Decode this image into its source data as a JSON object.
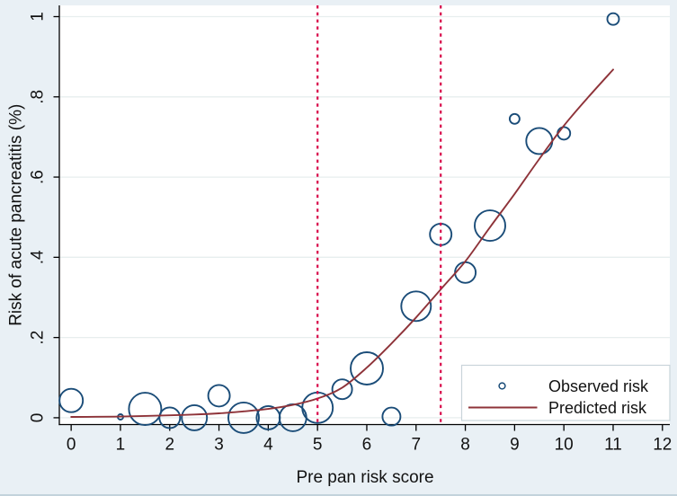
{
  "figure": {
    "background_color": "#e9f0f5",
    "plot_background_color": "#ffffff",
    "grid_color": "#e7eeee",
    "axis_color": "#000000",
    "text_color": "#121212",
    "legend_border_color": "#c9d4da",
    "bottom_edge_color": "#c3d3dc"
  },
  "chart_data": {
    "type": "scatter",
    "subtype": "bubble-scatter-with-fitted-line",
    "title": "",
    "xlabel": "Pre pan risk score",
    "ylabel": "Risk of acute pancreatitis (%)",
    "x_tick_values": [
      0,
      1,
      2,
      3,
      4,
      5,
      6,
      7,
      8,
      9,
      10,
      11,
      12
    ],
    "x_tick_labels": [
      "0",
      "1",
      "2",
      "3",
      "4",
      "5",
      "6",
      "7",
      "8",
      "9",
      "10",
      "11",
      "12"
    ],
    "y_tick_values": [
      0,
      0.2,
      0.4,
      0.6,
      0.8,
      1
    ],
    "y_tick_labels": [
      "0",
      ".2",
      ".4",
      ".6",
      ".8",
      "1"
    ],
    "xlim": [
      -0.24,
      12.15
    ],
    "ylim": [
      -0.017,
      1.028
    ],
    "grid": "horizontal-only",
    "y_tick_label_angle": 90,
    "reference_lines": {
      "x_values": [
        5,
        7.5
      ],
      "style": "dotted",
      "color": "#d8094a"
    },
    "series": [
      {
        "name": "Observed risk",
        "type": "bubble",
        "marker": "hollow-circle",
        "color": "#1a4c78",
        "points": [
          {
            "x": 0,
            "y": 0.043,
            "r": 13
          },
          {
            "x": 1,
            "y": 0.002,
            "r": 3
          },
          {
            "x": 1.5,
            "y": 0.022,
            "r": 18
          },
          {
            "x": 2,
            "y": 0.0,
            "r": 11.5
          },
          {
            "x": 2.5,
            "y": 0.0,
            "r": 14
          },
          {
            "x": 3,
            "y": 0.055,
            "r": 12
          },
          {
            "x": 3.5,
            "y": 0.0,
            "r": 17
          },
          {
            "x": 4,
            "y": 0.0,
            "r": 13
          },
          {
            "x": 4.5,
            "y": 0.0,
            "r": 15
          },
          {
            "x": 5,
            "y": 0.025,
            "r": 17
          },
          {
            "x": 5.5,
            "y": 0.071,
            "r": 11
          },
          {
            "x": 6,
            "y": 0.123,
            "r": 18
          },
          {
            "x": 6.5,
            "y": 0.003,
            "r": 10
          },
          {
            "x": 7,
            "y": 0.278,
            "r": 16.5
          },
          {
            "x": 7.5,
            "y": 0.457,
            "r": 12
          },
          {
            "x": 8,
            "y": 0.362,
            "r": 11.5
          },
          {
            "x": 8.5,
            "y": 0.479,
            "r": 17
          },
          {
            "x": 9,
            "y": 0.745,
            "r": 5.5
          },
          {
            "x": 9.5,
            "y": 0.69,
            "r": 14.5
          },
          {
            "x": 10,
            "y": 0.709,
            "r": 7
          },
          {
            "x": 11,
            "y": 0.994,
            "r": 6.5
          }
        ]
      },
      {
        "name": "Predicted risk",
        "type": "line",
        "color": "#8e3339",
        "points": [
          [
            0,
            0.002
          ],
          [
            0.5,
            0.0025
          ],
          [
            1,
            0.003
          ],
          [
            1.5,
            0.0045
          ],
          [
            2,
            0.006
          ],
          [
            2.5,
            0.008
          ],
          [
            3,
            0.011
          ],
          [
            3.5,
            0.016
          ],
          [
            4,
            0.022
          ],
          [
            4.5,
            0.032
          ],
          [
            5,
            0.048
          ],
          [
            5.5,
            0.075
          ],
          [
            6,
            0.125
          ],
          [
            6.5,
            0.185
          ],
          [
            7,
            0.25
          ],
          [
            7.5,
            0.32
          ],
          [
            8,
            0.39
          ],
          [
            8.5,
            0.475
          ],
          [
            9,
            0.558
          ],
          [
            9.5,
            0.645
          ],
          [
            10,
            0.728
          ],
          [
            10.5,
            0.8
          ],
          [
            11,
            0.868
          ]
        ]
      }
    ],
    "legend": {
      "position": "bottom-right",
      "entries": [
        {
          "label": "Observed risk",
          "marker": "hollow-circle",
          "color": "#1a4c78"
        },
        {
          "label": "Predicted risk",
          "marker": "line",
          "color": "#8e3339"
        }
      ]
    }
  }
}
